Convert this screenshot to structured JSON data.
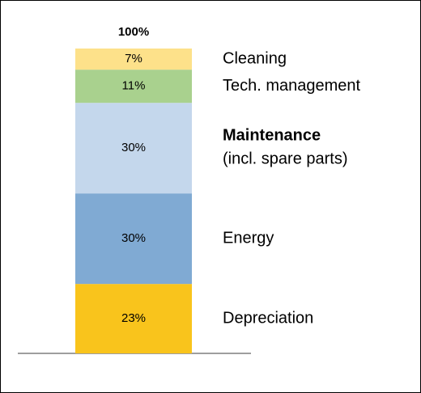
{
  "chart_data": {
    "type": "stacked-bar",
    "total_label": "100%",
    "series": [
      {
        "name": "Depreciation",
        "color": "#f9c41c",
        "values": [
          23
        ],
        "value_labels": [
          "23%"
        ]
      },
      {
        "name": "Energy",
        "color": "#80aad3",
        "values": [
          30
        ],
        "value_labels": [
          "30%"
        ]
      },
      {
        "name": "Maintenance",
        "name_note": "(incl. spare parts)",
        "bold": true,
        "color": "#c4d7ec",
        "values": [
          30
        ],
        "value_labels": [
          "30%"
        ]
      },
      {
        "name": "Tech. management",
        "color": "#a9d18e",
        "values": [
          11
        ],
        "value_labels": [
          "11%"
        ]
      },
      {
        "name": "Cleaning",
        "color": "#fde18a",
        "values": [
          7
        ],
        "value_labels": [
          "7%"
        ]
      }
    ]
  }
}
